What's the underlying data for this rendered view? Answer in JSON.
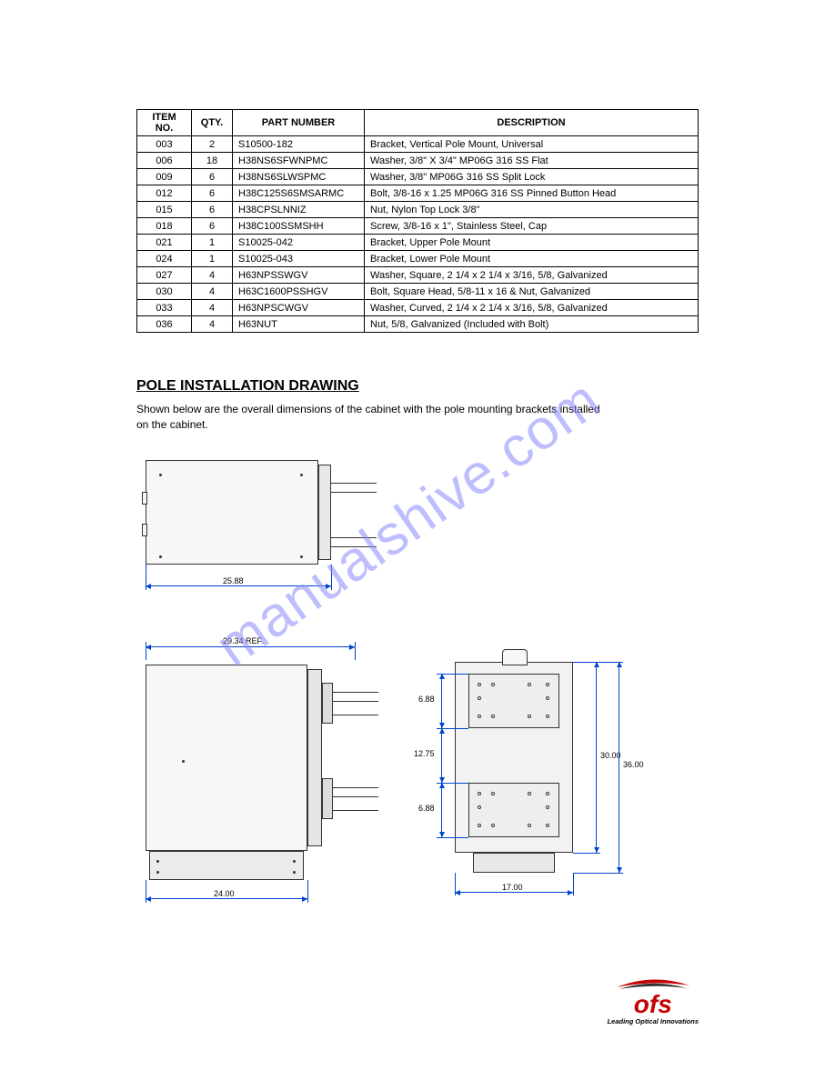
{
  "table": {
    "headers": {
      "item": "ITEM NO.",
      "qty": "QTY.",
      "part": "PART NUMBER",
      "desc": "DESCRIPTION"
    },
    "rows": [
      {
        "item": "003",
        "qty": "2",
        "part": "S10500-182",
        "desc": "Bracket, Vertical Pole Mount, Universal"
      },
      {
        "item": "006",
        "qty": "18",
        "part": "H38NS6SFWNPMC",
        "desc": "Washer, 3/8\" X 3/4\" MP06G 316 SS Flat"
      },
      {
        "item": "009",
        "qty": "6",
        "part": "H38NS6SLWSPMC",
        "desc": "Washer, 3/8\" MP06G 316 SS Split Lock"
      },
      {
        "item": "012",
        "qty": "6",
        "part": "H38C125S6SMSARMC",
        "desc": "Bolt, 3/8-16 x 1.25 MP06G 316 SS Pinned Button Head"
      },
      {
        "item": "015",
        "qty": "6",
        "part": "H38CPSLNNIZ",
        "desc": "Nut, Nylon Top Lock 3/8\""
      },
      {
        "item": "018",
        "qty": "6",
        "part": "H38C100SSMSHH",
        "desc": "Screw, 3/8-16 x 1\", Stainless Steel, Cap"
      },
      {
        "item": "021",
        "qty": "1",
        "part": "S10025-042",
        "desc": "Bracket, Upper Pole Mount"
      },
      {
        "item": "024",
        "qty": "1",
        "part": "S10025-043",
        "desc": "Bracket, Lower Pole Mount"
      },
      {
        "item": "027",
        "qty": "4",
        "part": "H63NPSSWGV",
        "desc": "Washer, Square, 2 1/4 x 2 1/4 x 3/16, 5/8, Galvanized"
      },
      {
        "item": "030",
        "qty": "4",
        "part": "H63C1600PSSHGV",
        "desc": "Bolt, Square Head, 5/8-11 x 16 & Nut, Galvanized"
      },
      {
        "item": "033",
        "qty": "4",
        "part": "H63NPSCWGV",
        "desc": "Washer, Curved, 2 1/4 x 2 1/4 x 3/16, 5/8, Galvanized"
      },
      {
        "item": "036",
        "qty": "4",
        "part": "H63NUT",
        "desc": "Nut, 5/8, Galvanized (Included with Bolt)"
      }
    ]
  },
  "section": {
    "title": "POLE INSTALLATION DRAWING",
    "sub": "Shown below are the overall dimensions of the cabinet with the pole mounting brackets installed on the cabinet."
  },
  "drawing": {
    "top": {
      "width_dim": "25.88",
      "box_color": "#f0f0f0",
      "line_color": "#0044cc"
    },
    "left": {
      "ref_dim": "29.34 REF.",
      "width_dim": "24.00"
    },
    "right": {
      "top_gap_dim": "6.88",
      "mid_dim": "12.75",
      "bot_gap_dim": "6.88",
      "inner_h_dim": "30.00",
      "outer_h_dim": "36.00",
      "width_dim": "17.00"
    }
  },
  "watermark": "manualshive.com",
  "logo": {
    "brand": "ofs",
    "tagline": "Leading Optical Innovations",
    "red": "#c40000",
    "black": "#000000"
  }
}
